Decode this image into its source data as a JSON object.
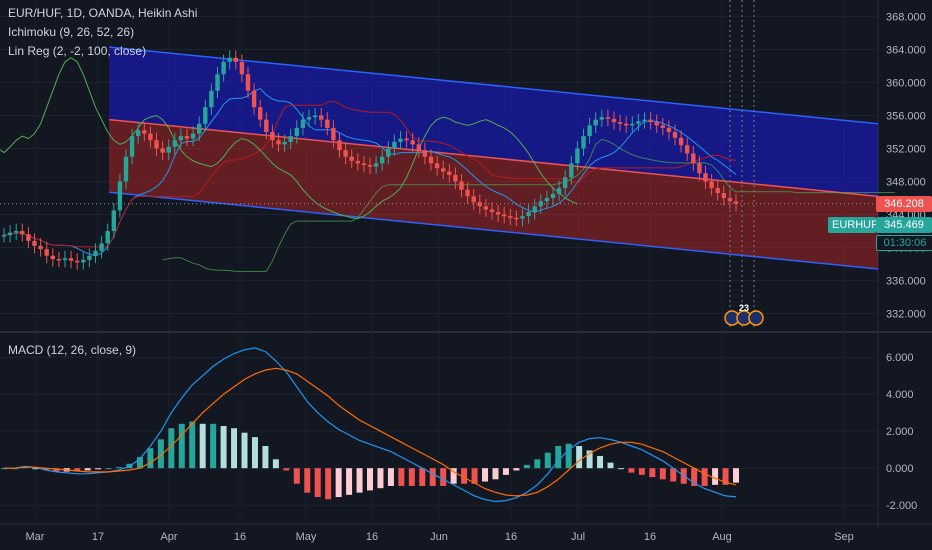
{
  "legend": {
    "main": "EUR/HUF, 1D, OANDA, Heikin Ashi",
    "ichimoku": "Ichimoku (9, 26, 52, 26)",
    "linreg": "Lin Reg (2, -2, 100, close)",
    "macd": "MACD (12, 26, close, 9)"
  },
  "price_tags": {
    "red_value": "346.208",
    "symbol": "EURHUF",
    "last_price": "345.469",
    "countdown": "01:30:06"
  },
  "events_badge": "23",
  "colors": {
    "background": "#131722",
    "bull": "#26a69a",
    "bear": "#ef5350",
    "channel_upper": "#1a1aff",
    "channel_lower": "#c62828",
    "macd_line": "#2196f3",
    "signal_line": "#ff6d00",
    "tenkan": "#2196f3",
    "kijun": "#b71c1c",
    "chikou": "#4caf50"
  },
  "chart_data": {
    "type": "candlestick",
    "title": "EUR/HUF, 1D, OANDA, Heikin Ashi",
    "x_ticks": [
      "Mar",
      "17",
      "Apr",
      "16",
      "May",
      "16",
      "Jun",
      "16",
      "Jul",
      "16",
      "Aug",
      "Sep"
    ],
    "price_axis": {
      "ticks": [
        "368.000",
        "364.000",
        "360.000",
        "356.000",
        "352.000",
        "348.000",
        "344.000",
        "340.000",
        "336.000",
        "332.000"
      ],
      "range": [
        330,
        370
      ]
    },
    "macd_axis": {
      "ticks": [
        "6.000",
        "4.000",
        "2.000",
        "0.000",
        "-2.000"
      ],
      "range": [
        -2.8,
        7.2
      ]
    },
    "heikin_ashi_close_approx": [
      341.5,
      341.8,
      342,
      341.6,
      340.8,
      340.2,
      339.8,
      339,
      338.6,
      338.5,
      338.7,
      338.4,
      338.2,
      338.5,
      339,
      339.6,
      340.5,
      342,
      344.5,
      348,
      351,
      353.5,
      354.2,
      353.8,
      353,
      352,
      351.5,
      352.2,
      353,
      353.5,
      353.2,
      353.8,
      355,
      357,
      359,
      361,
      362.5,
      363,
      362.5,
      361,
      359,
      357,
      355.5,
      354,
      353,
      352.5,
      352.8,
      353.5,
      354.5,
      355.5,
      355.8,
      356,
      355.5,
      354.5,
      353,
      351.8,
      351,
      350.5,
      350.2,
      350,
      349.8,
      350.2,
      351,
      352,
      352.8,
      353.2,
      353,
      352.5,
      351.8,
      351,
      350.2,
      349.6,
      349.2,
      348.8,
      348,
      347,
      346.2,
      345.5,
      345,
      344.6,
      344.3,
      344,
      343.8,
      343.6,
      343.5,
      343.8,
      344.3,
      345,
      345.6,
      346,
      346.5,
      347.2,
      348.5,
      350.2,
      352,
      353.5,
      354.8,
      355.5,
      355.8,
      355.6,
      355.2,
      355,
      354.8,
      355,
      355.3,
      355.5,
      355.2,
      354.8,
      354.5,
      354,
      353.3,
      352.4,
      351.4,
      350.2,
      349,
      348,
      347.2,
      346.6,
      346,
      345.6,
      345.3
    ],
    "linreg_channel": {
      "start_mid": 355.5,
      "end_mid": 346.2,
      "upper_offset": 8.8,
      "lower_offset": 8.8
    },
    "macd": {
      "macd_line_approx": [
        0,
        0,
        0.1,
        0.05,
        -0.1,
        -0.2,
        -0.25,
        -0.3,
        -0.3,
        -0.25,
        -0.2,
        -0.1,
        0.1,
        0.5,
        1.2,
        2,
        3,
        3.8,
        4.5,
        5,
        5.5,
        5.9,
        6.2,
        6.4,
        6.5,
        6.3,
        5.8,
        5.2,
        4.4,
        3.6,
        3,
        2.5,
        2.1,
        1.8,
        1.5,
        1.3,
        1.1,
        0.9,
        0.6,
        0.3,
        0,
        -0.3,
        -0.6,
        -0.9,
        -1.2,
        -1.5,
        -1.7,
        -1.8,
        -1.75,
        -1.6,
        -1.3,
        -0.9,
        -0.3,
        0.4,
        1,
        1.4,
        1.6,
        1.65,
        1.55,
        1.4,
        1.2,
        1,
        0.7,
        0.4,
        0,
        -0.4,
        -0.8,
        -1.1,
        -1.3,
        -1.5,
        -1.55
      ],
      "signal_line_approx": [
        0,
        0,
        0.05,
        0.05,
        0,
        -0.05,
        -0.1,
        -0.15,
        -0.2,
        -0.2,
        -0.2,
        -0.15,
        -0.1,
        0,
        0.3,
        0.7,
        1.2,
        1.8,
        2.4,
        3,
        3.5,
        4,
        4.4,
        4.8,
        5.1,
        5.3,
        5.4,
        5.3,
        5.1,
        4.7,
        4.3,
        3.9,
        3.4,
        3,
        2.6,
        2.3,
        2,
        1.7,
        1.4,
        1.1,
        0.8,
        0.5,
        0.2,
        -0.2,
        -0.5,
        -0.8,
        -1.1,
        -1.3,
        -1.45,
        -1.5,
        -1.45,
        -1.3,
        -1,
        -0.6,
        -0.1,
        0.4,
        0.8,
        1.1,
        1.3,
        1.4,
        1.4,
        1.3,
        1.1,
        0.9,
        0.6,
        0.3,
        0,
        -0.3,
        -0.55,
        -0.75,
        -0.9
      ]
    }
  }
}
